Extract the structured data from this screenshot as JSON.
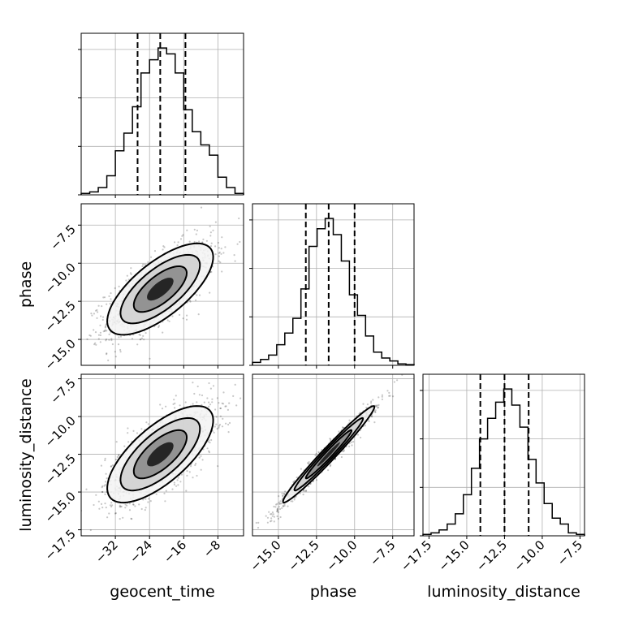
{
  "chart_data": {
    "type": "corner",
    "parameters": [
      {
        "name": "geocent_time",
        "range": [
          -40,
          -2
        ],
        "ticks": [
          -32,
          -24,
          -16,
          -8
        ],
        "tick_labels": [
          "−32",
          "−24",
          "−16",
          "−8"
        ]
      },
      {
        "name": "phase",
        "range": [
          -16.7,
          -6.1
        ],
        "ticks": [
          -15.0,
          -12.5,
          -10.0,
          -7.5
        ],
        "tick_labels": [
          "−15.0",
          "−12.5",
          "−10.0",
          "−7.5"
        ]
      },
      {
        "name": "luminosity_distance",
        "range": [
          -17.9,
          -7.2
        ],
        "ticks": [
          -17.5,
          -15.0,
          -12.5,
          -10.0,
          -7.5
        ],
        "tick_labels": [
          "−17.5",
          "−15.0",
          "−12.5",
          "−10.0",
          "−7.5"
        ]
      }
    ],
    "histograms": [
      {
        "parameter": "geocent_time",
        "bin_edges": [
          -40,
          -38,
          -36,
          -34,
          -32,
          -30,
          -28,
          -26,
          -24,
          -22,
          -20,
          -18,
          -16,
          -14,
          -12,
          -10,
          -8,
          -6,
          -4,
          -2
        ],
        "counts": [
          0.01,
          0.02,
          0.05,
          0.13,
          0.3,
          0.42,
          0.6,
          0.83,
          0.92,
          1.0,
          0.96,
          0.83,
          0.58,
          0.43,
          0.34,
          0.27,
          0.12,
          0.05,
          0.01
        ],
        "quantiles": [
          -26.8,
          -21.5,
          -15.6
        ]
      },
      {
        "parameter": "phase",
        "bin_edges": [
          -16.7,
          -16.17,
          -15.64,
          -15.11,
          -14.58,
          -14.05,
          -13.52,
          -12.99,
          -12.46,
          -11.93,
          -11.4,
          -10.87,
          -10.34,
          -9.81,
          -9.28,
          -8.75,
          -8.22,
          -7.69,
          -7.16,
          -6.63,
          -6.1
        ],
        "counts": [
          0.02,
          0.04,
          0.07,
          0.14,
          0.22,
          0.32,
          0.52,
          0.81,
          0.93,
          1.0,
          0.89,
          0.71,
          0.48,
          0.34,
          0.2,
          0.09,
          0.05,
          0.03,
          0.01,
          0.005
        ],
        "quantiles": [
          -13.2,
          -11.7,
          -10.0
        ]
      },
      {
        "parameter": "luminosity_distance",
        "bin_edges": [
          -17.9,
          -17.365,
          -16.83,
          -16.295,
          -15.76,
          -15.225,
          -14.69,
          -14.155,
          -13.62,
          -13.085,
          -12.55,
          -12.015,
          -11.48,
          -10.945,
          -10.41,
          -9.875,
          -9.34,
          -8.805,
          -8.27,
          -7.735,
          -7.2
        ],
        "counts": [
          0.01,
          0.02,
          0.04,
          0.08,
          0.15,
          0.28,
          0.46,
          0.66,
          0.8,
          0.91,
          1.0,
          0.89,
          0.74,
          0.52,
          0.36,
          0.22,
          0.12,
          0.08,
          0.02,
          0.01
        ],
        "quantiles": [
          -14.1,
          -12.5,
          -10.9
        ]
      }
    ],
    "joint_2d": [
      {
        "x": "geocent_time",
        "y": "phase",
        "center": [
          -21.5,
          -11.7
        ],
        "x_sigma": 6.2,
        "y_sigma": 1.5,
        "correlation": 0.7
      },
      {
        "x": "geocent_time",
        "y": "luminosity_distance",
        "center": [
          -21.5,
          -12.5
        ],
        "x_sigma": 6.2,
        "y_sigma": 1.6,
        "correlation": 0.7
      },
      {
        "x": "phase",
        "y": "luminosity_distance",
        "center": [
          -11.7,
          -12.5
        ],
        "x_sigma": 1.5,
        "y_sigma": 1.6,
        "correlation": 0.98
      }
    ],
    "contour_levels_sigma": [
      0.5,
      1.0,
      1.5,
      2.0
    ],
    "grid": true,
    "quantile_line_style": "dashed"
  }
}
